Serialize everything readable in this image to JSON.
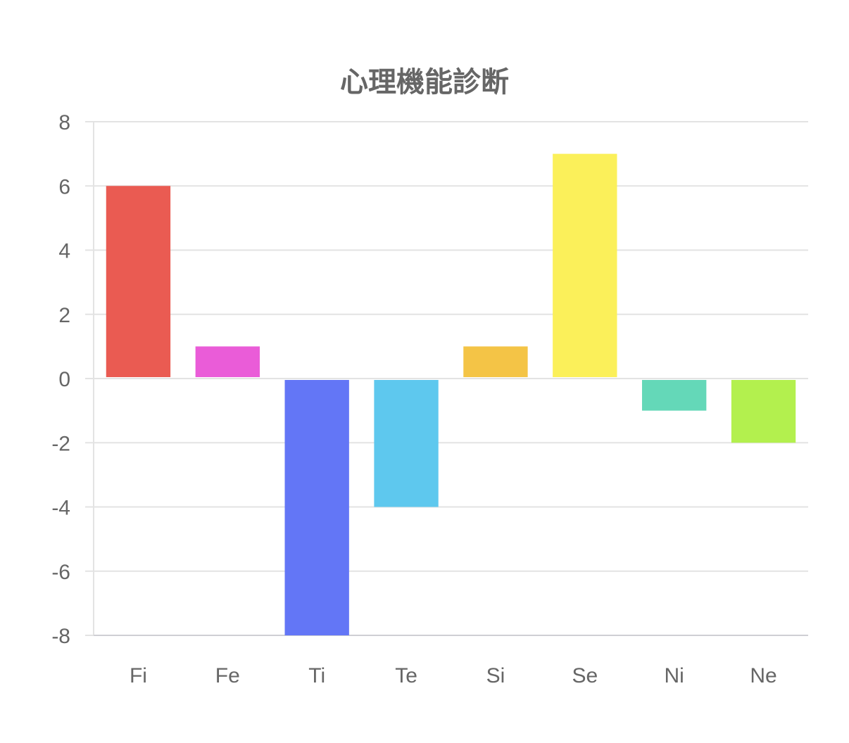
{
  "chart_data": {
    "type": "bar",
    "title": "心理機能診断",
    "categories": [
      "Fi",
      "Fe",
      "Ti",
      "Te",
      "Si",
      "Se",
      "Ni",
      "Ne"
    ],
    "values": [
      6,
      1,
      -8,
      -4,
      1,
      7,
      -1,
      -2
    ],
    "colors": [
      "#EA5B52",
      "#EA5CD8",
      "#6376F6",
      "#5EC8EE",
      "#F4C446",
      "#FBF05A",
      "#64D8B8",
      "#B3F04E"
    ],
    "ylim": [
      -8,
      8
    ],
    "yticks": [
      8,
      6,
      4,
      2,
      0,
      -2,
      -4,
      -6,
      -8
    ],
    "grid": true,
    "xlabel": "",
    "ylabel": ""
  }
}
